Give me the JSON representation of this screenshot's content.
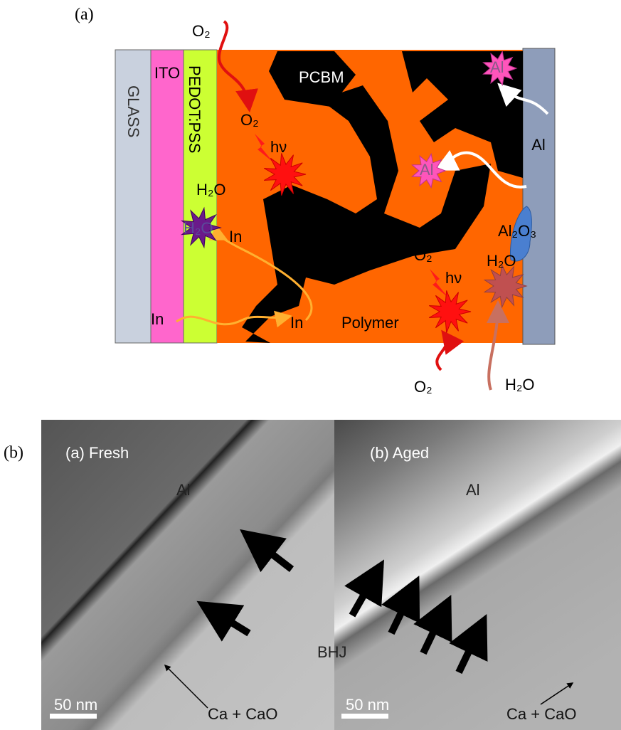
{
  "panel_a": {
    "label": "(a)",
    "layers": {
      "glass": "GLASS",
      "ito": "ITO",
      "pedot": "PEDOT:PSS",
      "electrode": "Al"
    },
    "labels": {
      "o2_top": "O₂",
      "pcbm": "PCBM",
      "o2_left": "O₂",
      "hv_left": "hν",
      "h2o_left": "H₂O",
      "h2o_star": "H₂O",
      "in_upper": "In",
      "in_left": "In",
      "in_middle": "In",
      "al_star_top": "Al",
      "al_star_mid": "Al",
      "al2o3": "Al₂O₃",
      "o2_right": "O₂",
      "hv_right": "hν",
      "h2o_right": "H₂O",
      "polymer": "Polymer",
      "o2_bottom": "O₂",
      "h2o_bottom": "H₂O"
    }
  },
  "panel_b": {
    "label": "(b)",
    "fresh": {
      "title": "(a) Fresh",
      "al": "Al",
      "scale": "50 nm",
      "interlayer": "Ca + CaO"
    },
    "aged": {
      "title": "(b) Aged",
      "al": "Al",
      "scale": "50 nm",
      "interlayer": "Ca + CaO"
    },
    "bhj": "BHJ"
  }
}
